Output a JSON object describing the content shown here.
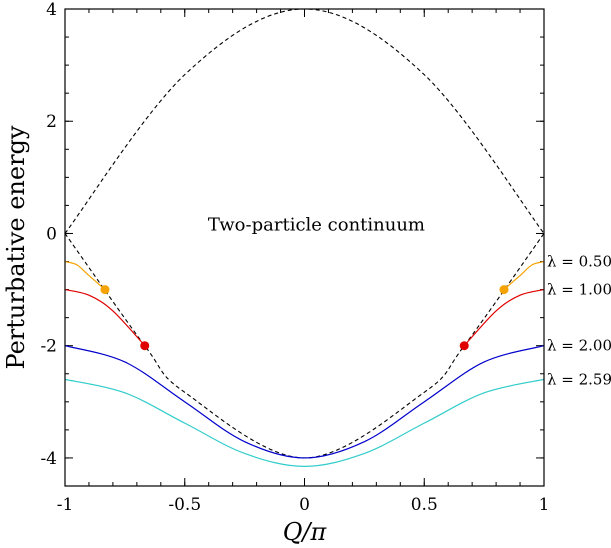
{
  "chart_data": {
    "type": "line",
    "xlabel": "Q/π",
    "ylabel": "Perturbative energy",
    "xlim": [
      -1,
      1
    ],
    "ylim": [
      -4.5,
      4
    ],
    "x_ticks": [
      "-1",
      "-0.5",
      "0",
      "0.5",
      "1"
    ],
    "y_ticks": [
      "4",
      "2",
      "0",
      "-2",
      "-4"
    ],
    "x_tick_values": [
      -1,
      -0.5,
      0,
      0.5,
      1
    ],
    "y_tick_values": [
      4,
      2,
      0,
      -2,
      -4
    ],
    "annotation": "Two-particle continuum",
    "continuum": {
      "style": "dashed",
      "color": "#000000",
      "upper": [
        [
          -1,
          0
        ],
        [
          -0.5,
          2.83
        ],
        [
          0,
          4
        ],
        [
          0.5,
          2.83
        ],
        [
          1,
          0
        ]
      ],
      "lower": [
        [
          -1,
          0
        ],
        [
          -0.667,
          -2
        ],
        [
          -0.5,
          -2.83
        ],
        [
          0,
          -4
        ],
        [
          0.5,
          -2.83
        ],
        [
          0.667,
          -2
        ],
        [
          1,
          0
        ]
      ]
    },
    "series": [
      {
        "label": "λ = 0.50",
        "lambda": 0.5,
        "color": "#f5a300",
        "x": [
          -1,
          -0.95,
          -0.9,
          -0.833,
          0.833,
          0.9,
          0.95,
          1
        ],
        "y": [
          -0.5,
          -0.56,
          -0.75,
          -1.0,
          -1.0,
          -0.75,
          -0.56,
          -0.5
        ],
        "segments": [
          [
            0,
            3
          ],
          [
            4,
            7
          ]
        ]
      },
      {
        "label": "λ = 1.00",
        "lambda": 1.0,
        "color": "#e00000",
        "x": [
          -1,
          -0.9,
          -0.8,
          -0.667,
          0.667,
          0.8,
          0.9,
          1
        ],
        "y": [
          -1.0,
          -1.1,
          -1.38,
          -2.0,
          -2.0,
          -1.38,
          -1.1,
          -1.0
        ],
        "segments": [
          [
            0,
            3
          ],
          [
            4,
            7
          ]
        ]
      },
      {
        "label": "λ = 2.00",
        "lambda": 2.0,
        "color": "#0000cc",
        "x": [
          -1,
          -0.75,
          -0.5,
          -0.25,
          0,
          0.25,
          0.5,
          0.75,
          1
        ],
        "y": [
          -2.0,
          -2.29,
          -3.0,
          -3.71,
          -4.0,
          -3.71,
          -3.0,
          -2.29,
          -2.0
        ]
      },
      {
        "label": "λ = 2.59",
        "lambda": 2.59,
        "color": "#33cccc",
        "x": [
          -1,
          -0.75,
          -0.5,
          -0.25,
          0,
          0.25,
          0.5,
          0.75,
          1
        ],
        "y": [
          -2.6,
          -2.84,
          -3.38,
          -3.92,
          -4.15,
          -3.92,
          -3.38,
          -2.84,
          -2.6
        ]
      }
    ],
    "markers": [
      {
        "x": -0.833,
        "y": -1.0,
        "color": "#f5a300"
      },
      {
        "x": 0.833,
        "y": -1.0,
        "color": "#f5a300"
      },
      {
        "x": -0.667,
        "y": -2.0,
        "color": "#e00000"
      },
      {
        "x": 0.667,
        "y": -2.0,
        "color": "#e00000"
      }
    ]
  }
}
